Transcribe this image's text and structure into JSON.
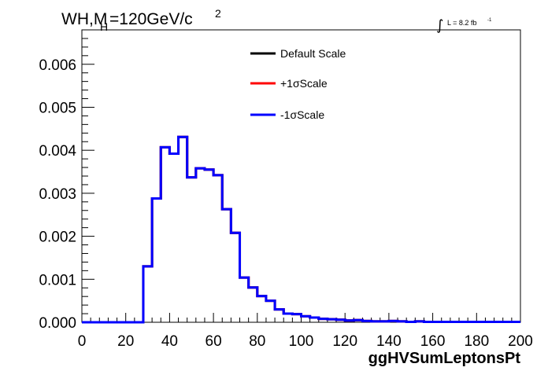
{
  "chart_data": {
    "type": "histogram-step",
    "title_parts": {
      "main": "WH,M",
      "subscript": "H",
      "rest": "=120GeV/c",
      "superscript": "2"
    },
    "luminosity": {
      "integral_symbol": "∫",
      "text": "L = 8.2 fb",
      "superscript": "-1"
    },
    "xlabel": "ggHVSumLeptonsPt",
    "ylabel": "",
    "xlim": [
      0,
      200
    ],
    "ylim": [
      0,
      0.0068
    ],
    "x_ticks": [
      "0",
      "20",
      "40",
      "60",
      "80",
      "100",
      "120",
      "140",
      "160",
      "180",
      "200"
    ],
    "y_ticks": [
      "0.000",
      "0.001",
      "0.002",
      "0.003",
      "0.004",
      "0.005",
      "0.006"
    ],
    "bin_edges_start": 0,
    "bin_width": 4,
    "series": [
      {
        "name": "Default Scale",
        "color": "#000000",
        "values": [
          0,
          0,
          0,
          0,
          0,
          0,
          0,
          0.0013,
          0.00288,
          0.00407,
          0.00392,
          0.00431,
          0.00337,
          0.00358,
          0.00355,
          0.00342,
          0.00263,
          0.00208,
          0.00104,
          0.00081,
          0.00061,
          0.0005,
          0.0003,
          0.0002,
          0.00019,
          0.00014,
          0.00011,
          8e-05,
          7e-05,
          6e-05,
          4e-05,
          5e-05,
          3e-05,
          2e-05,
          2e-05,
          3e-05,
          2e-05,
          1e-05,
          2e-05,
          1e-05,
          1e-05,
          1e-05,
          1e-05,
          1e-05,
          1e-05,
          1e-05,
          1e-05,
          1e-05,
          1e-05,
          1e-05
        ]
      },
      {
        "name": "+1σScale",
        "color": "#ff0000",
        "values": [
          0,
          0,
          0,
          0,
          0,
          0,
          0,
          0.0013,
          0.00288,
          0.00407,
          0.00392,
          0.00431,
          0.00337,
          0.00358,
          0.00355,
          0.00342,
          0.00263,
          0.00208,
          0.00104,
          0.00081,
          0.00061,
          0.0005,
          0.0003,
          0.0002,
          0.00019,
          0.00014,
          0.00011,
          8e-05,
          7e-05,
          6e-05,
          4e-05,
          5e-05,
          3e-05,
          2e-05,
          2e-05,
          3e-05,
          2e-05,
          1e-05,
          2e-05,
          1e-05,
          1e-05,
          1e-05,
          1e-05,
          1e-05,
          1e-05,
          1e-05,
          1e-05,
          1e-05,
          1e-05,
          1e-05
        ]
      },
      {
        "name": "-1σScale",
        "color": "#0000ff",
        "values": [
          0,
          0,
          0,
          0,
          0,
          0,
          0,
          0.0013,
          0.00288,
          0.00407,
          0.00392,
          0.00431,
          0.00337,
          0.00358,
          0.00355,
          0.00342,
          0.00263,
          0.00208,
          0.00104,
          0.00081,
          0.00061,
          0.0005,
          0.0003,
          0.0002,
          0.00019,
          0.00014,
          0.00011,
          8e-05,
          7e-05,
          6e-05,
          4e-05,
          5e-05,
          3e-05,
          2e-05,
          2e-05,
          3e-05,
          2e-05,
          1e-05,
          2e-05,
          1e-05,
          1e-05,
          1e-05,
          1e-05,
          1e-05,
          1e-05,
          1e-05,
          1e-05,
          1e-05,
          1e-05,
          1e-05
        ]
      }
    ],
    "legend": {
      "position": "top-center",
      "entries": [
        "Default Scale",
        "+1σScale",
        "-1σScale"
      ]
    },
    "grid": false
  }
}
